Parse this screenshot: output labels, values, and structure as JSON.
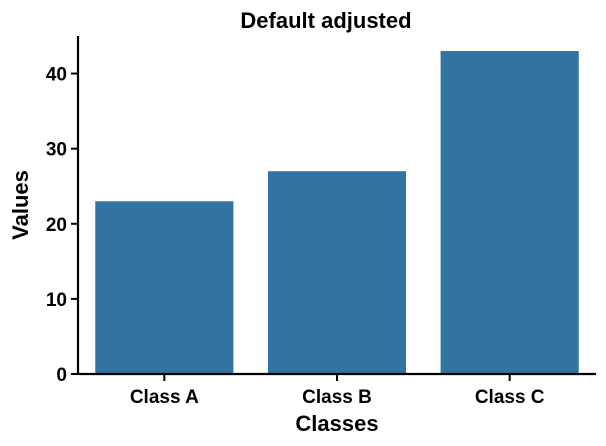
{
  "chart_data": {
    "type": "bar",
    "title": "Default adjusted",
    "xlabel": "Classes",
    "ylabel": "Values",
    "categories": [
      "Class A",
      "Class B",
      "Class C"
    ],
    "values": [
      23,
      27,
      43
    ],
    "ylim": [
      0,
      45
    ],
    "yticks": [
      0,
      10,
      20,
      30,
      40
    ],
    "bar_color": "#3274a1",
    "grid": false,
    "legend": "none"
  }
}
